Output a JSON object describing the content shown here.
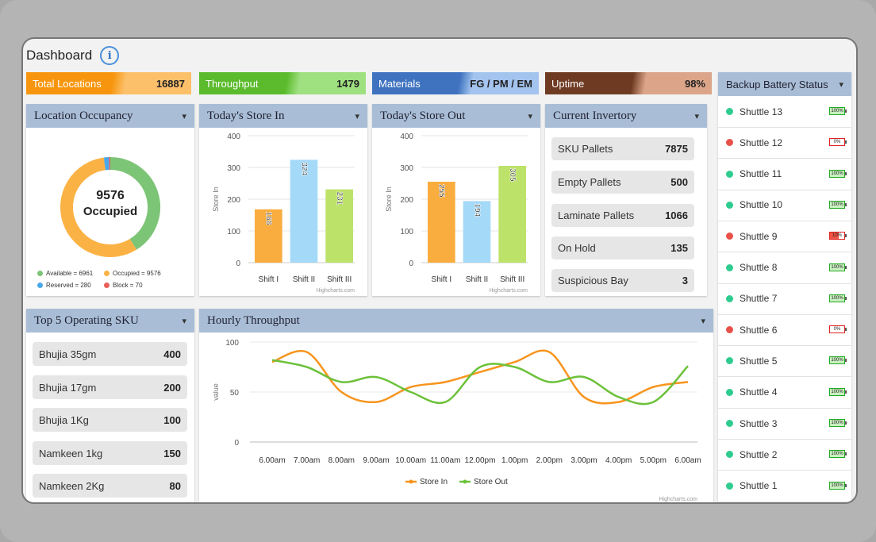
{
  "header": {
    "title": "Dashboard",
    "info_icon": "info-icon"
  },
  "kpis": [
    {
      "label": "Total Locations",
      "value": "16887",
      "color": "#f7960e",
      "bg": "#fcc06b"
    },
    {
      "label": "Throughput",
      "value": "1479",
      "color": "#5bbb2c",
      "bg": "#9fe080"
    },
    {
      "label": "Materials",
      "value": "FG / PM / EM",
      "color": "#3f73c0",
      "bg": "#a3c4ee"
    },
    {
      "label": "Uptime",
      "value": "98%",
      "color": "#6e3b22",
      "bg": "#dca58a"
    }
  ],
  "occupancy": {
    "title": "Location Occupancy",
    "center_value": "9576",
    "center_label": "Occupied",
    "legend": [
      {
        "label": "Available = 6961",
        "color": "#7cc576"
      },
      {
        "label": "Occupied = 9576",
        "color": "#fbb244"
      },
      {
        "label": "Reserved = 280",
        "color": "#4aa8e8"
      },
      {
        "label": "Block = 70",
        "color": "#e8605a"
      }
    ]
  },
  "store_in": {
    "title": "Today's Store In",
    "ylabel": "Store In",
    "credit": "Highcharts.com"
  },
  "store_out": {
    "title": "Today's Store Out",
    "ylabel": "Store In",
    "credit": "Highcharts.com"
  },
  "inventory": {
    "title": "Current Invertory",
    "items": [
      {
        "label": "SKU Pallets",
        "value": "7875"
      },
      {
        "label": "Empty Pallets",
        "value": "500"
      },
      {
        "label": "Laminate Pallets",
        "value": "1066"
      },
      {
        "label": "On Hold",
        "value": "135"
      },
      {
        "label": "Suspicious Bay",
        "value": "3"
      }
    ]
  },
  "battery": {
    "title": "Backup Battery Status",
    "items": [
      {
        "label": "Shuttle 13",
        "level": "100%",
        "status": "ok"
      },
      {
        "label": "Shuttle 12",
        "level": "0%",
        "status": "empty"
      },
      {
        "label": "Shuttle 11",
        "level": "100%",
        "status": "ok"
      },
      {
        "label": "Shuttle 10",
        "level": "100%",
        "status": "ok"
      },
      {
        "label": "Shuttle 9",
        "level": "10%",
        "status": "low"
      },
      {
        "label": "Shuttle 8",
        "level": "100%",
        "status": "ok"
      },
      {
        "label": "Shuttle 7",
        "level": "100%",
        "status": "ok"
      },
      {
        "label": "Shuttle 6",
        "level": "0%",
        "status": "empty"
      },
      {
        "label": "Shuttle 5",
        "level": "100%",
        "status": "ok"
      },
      {
        "label": "Shuttle 4",
        "level": "100%",
        "status": "ok"
      },
      {
        "label": "Shuttle 3",
        "level": "100%",
        "status": "ok"
      },
      {
        "label": "Shuttle 2",
        "level": "100%",
        "status": "ok"
      },
      {
        "label": "Shuttle 1",
        "level": "100%",
        "status": "ok"
      }
    ]
  },
  "top_sku": {
    "title": "Top 5 Operating SKU",
    "items": [
      {
        "label": "Bhujia 35gm",
        "value": "400"
      },
      {
        "label": "Bhujia 17gm",
        "value": "200"
      },
      {
        "label": "Bhujia 1Kg",
        "value": "100"
      },
      {
        "label": "Namkeen 1kg",
        "value": "150"
      },
      {
        "label": "Namkeen 2Kg",
        "value": "80"
      }
    ]
  },
  "hourly": {
    "title": "Hourly Throughput",
    "ylabel": "value",
    "credit": "Highcharts.com"
  },
  "chart_data": [
    {
      "type": "pie",
      "title": "Location Occupancy",
      "categories": [
        "Available",
        "Occupied",
        "Reserved",
        "Block"
      ],
      "values": [
        6961,
        9576,
        280,
        70
      ],
      "colors": [
        "#7cc576",
        "#fbb244",
        "#4aa8e8",
        "#e8605a"
      ]
    },
    {
      "type": "bar",
      "title": "Today's Store In",
      "categories": [
        "Shift I",
        "Shift II",
        "Shift III"
      ],
      "values": [
        168,
        324,
        231
      ],
      "ylim": [
        0,
        400
      ],
      "yticks": [
        0,
        100,
        200,
        300,
        400
      ],
      "colors": [
        "#f9ad3e",
        "#a5d9f8",
        "#bde26a"
      ],
      "ylabel": "Store In"
    },
    {
      "type": "bar",
      "title": "Today's Store Out",
      "categories": [
        "Shift I",
        "Shift II",
        "Shift III"
      ],
      "values": [
        255,
        194,
        305
      ],
      "ylim": [
        0,
        400
      ],
      "yticks": [
        0,
        100,
        200,
        300,
        400
      ],
      "colors": [
        "#f9ad3e",
        "#a5d9f8",
        "#bde26a"
      ],
      "ylabel": "Store In"
    },
    {
      "type": "line",
      "title": "Hourly Throughput",
      "x": [
        "6.00am",
        "7.00am",
        "8.00am",
        "9.00am",
        "10.00am",
        "11.00am",
        "12.00pm",
        "1.00pm",
        "2.00pm",
        "3.00pm",
        "4.00pm",
        "5.00pm",
        "6.00am"
      ],
      "ylim": [
        0,
        100
      ],
      "yticks": [
        0,
        50,
        100
      ],
      "ylabel": "value",
      "series": [
        {
          "name": "Store In",
          "color": "#f7941d",
          "values": [
            80,
            90,
            50,
            40,
            55,
            60,
            70,
            80,
            90,
            45,
            40,
            55,
            60
          ]
        },
        {
          "name": "Store Out",
          "color": "#6cc13a",
          "values": [
            82,
            75,
            60,
            65,
            50,
            40,
            75,
            75,
            60,
            65,
            45,
            40,
            76
          ]
        }
      ]
    }
  ]
}
